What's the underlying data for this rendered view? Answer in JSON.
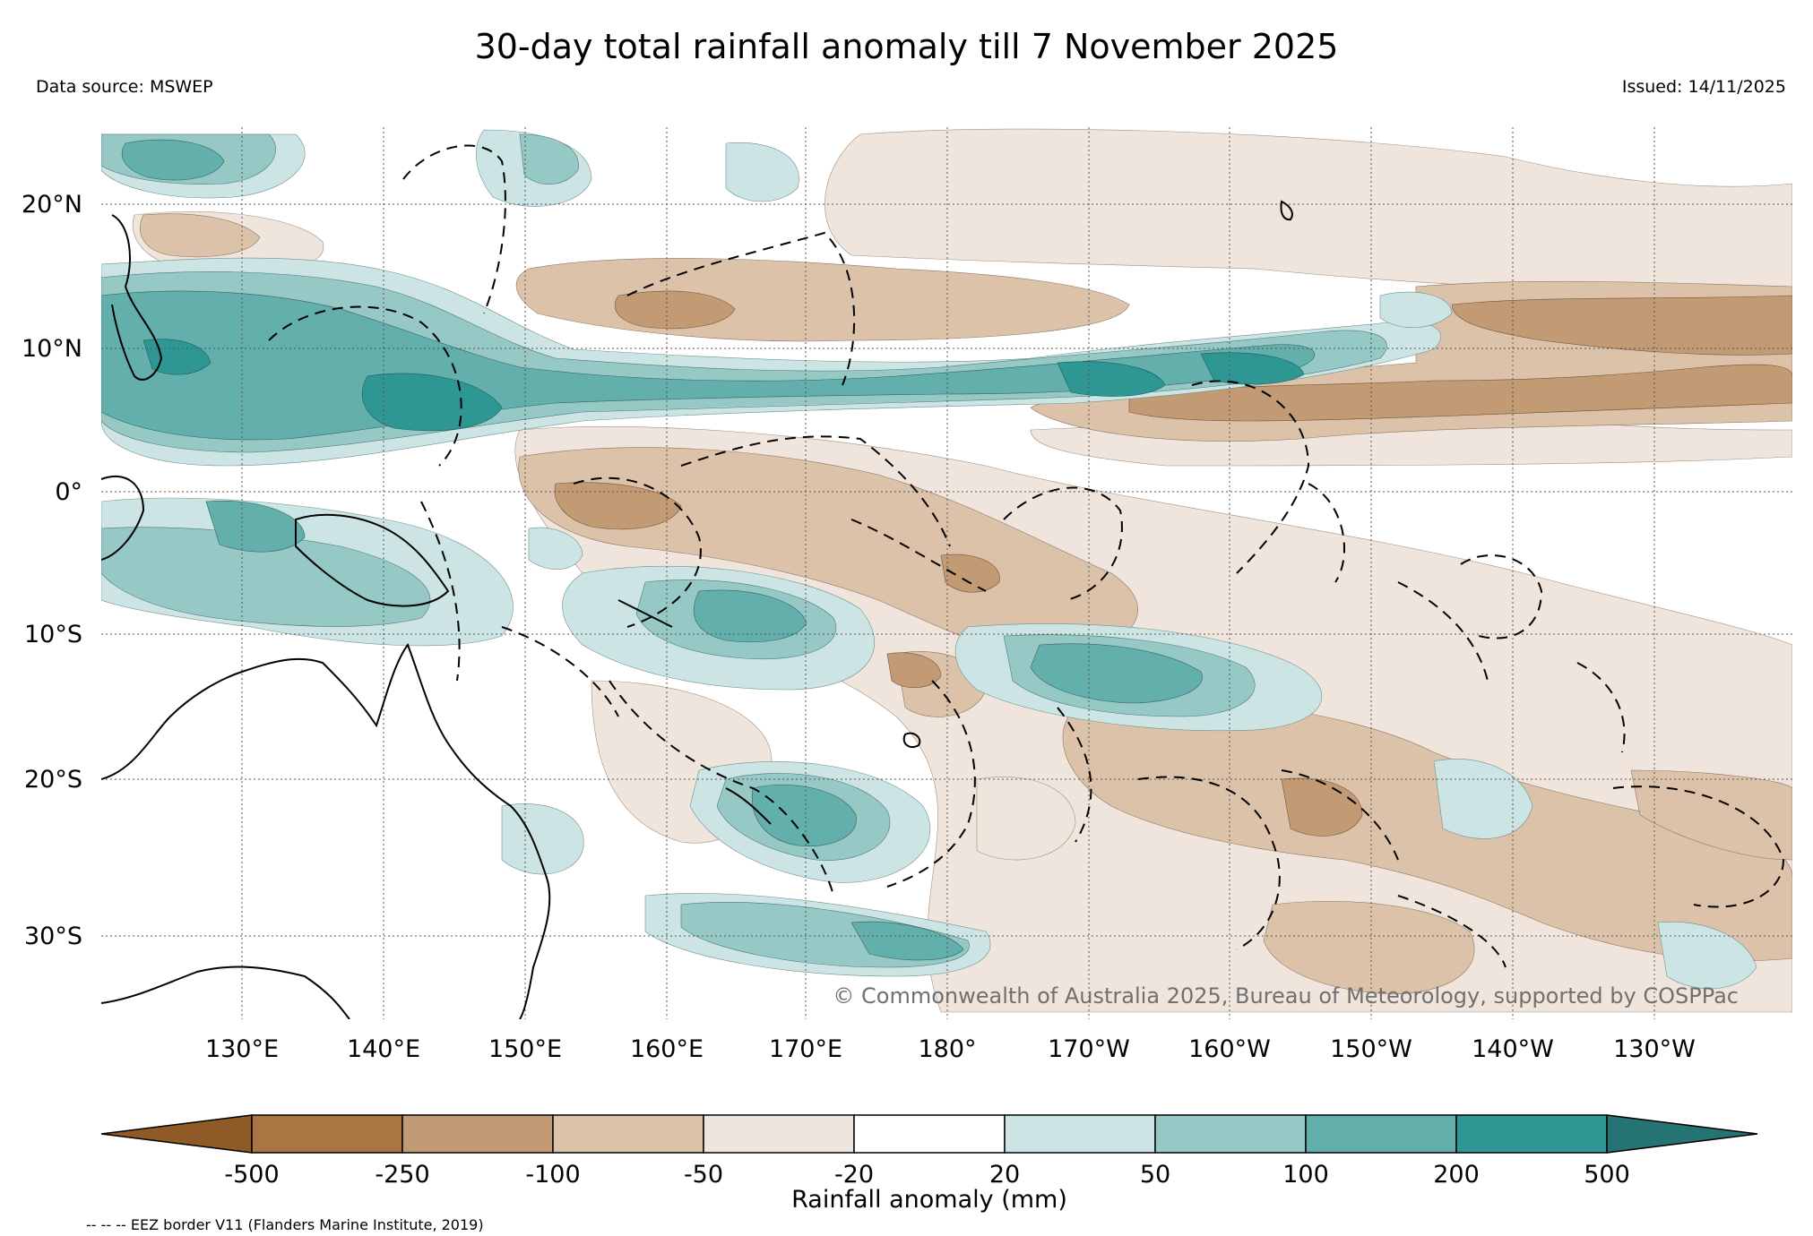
{
  "title": "30-day total rainfall anomaly till 7 November 2025",
  "data_source": "Data source: MSWEP",
  "issued": "Issued: 14/11/2025",
  "copyright": "© Commonwealth of Australia 2025, Bureau of Meteorology, supported by COSPPac",
  "eez_note": "-- -- -- EEZ border V11 (Flanders Marine Institute, 2019)",
  "map": {
    "lon_labels": [
      "130°E",
      "140°E",
      "150°E",
      "160°E",
      "170°E",
      "180°",
      "170°W",
      "160°W",
      "150°W",
      "140°W",
      "130°W"
    ],
    "lat_labels": [
      "20°N",
      "10°N",
      "0°",
      "10°S",
      "20°S",
      "30°S"
    ]
  },
  "colorbar": {
    "title": "Rainfall anomaly (mm)",
    "tick_labels": [
      "-500",
      "-250",
      "-100",
      "-50",
      "-20",
      "20",
      "50",
      "100",
      "200",
      "500"
    ],
    "colors": [
      "#8f5a26",
      "#a97543",
      "#c29a73",
      "#dbc2a8",
      "#f0e5dc",
      "#ffffff",
      "#cce5e4",
      "#96c8c6",
      "#63afac",
      "#2f9793",
      "#237472"
    ]
  },
  "palette": {
    "dry_strong": "#c29a73",
    "dry_mid": "#dbc2a8",
    "dry_light": "#f0e5dc",
    "wet_light": "#cce5e4",
    "wet_mid": "#96c8c6",
    "wet_strong": "#63afac",
    "wet_max": "#2f9793"
  }
}
